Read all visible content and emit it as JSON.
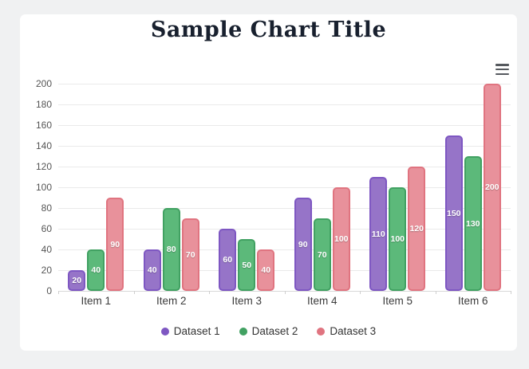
{
  "page": {
    "background_color": "#f0f1f2",
    "card_color": "#ffffff"
  },
  "toolbar": {
    "menu_icon": "hamburger-icon"
  },
  "chart_data": {
    "type": "bar",
    "title": "Sample Chart Title",
    "title_color": "#18202e",
    "categories": [
      "Item 1",
      "Item 2",
      "Item 3",
      "Item 4",
      "Item 5",
      "Item 6"
    ],
    "series": [
      {
        "name": "Dataset 1",
        "fill": "#9674c8",
        "border": "#7e57c2",
        "values": [
          20,
          40,
          60,
          90,
          110,
          150
        ]
      },
      {
        "name": "Dataset 2",
        "fill": "#5cb97a",
        "border": "#41a162",
        "values": [
          40,
          80,
          50,
          70,
          100,
          130
        ]
      },
      {
        "name": "Dataset 3",
        "fill": "#e8919b",
        "border": "#e07480",
        "values": [
          90,
          70,
          40,
          100,
          120,
          200
        ]
      }
    ],
    "xlabel": "",
    "ylabel": "",
    "ylim": [
      0,
      200
    ],
    "ytick_step": 20,
    "grid": true,
    "data_labels": "white, centered inside bars",
    "legend_position": "bottom"
  }
}
